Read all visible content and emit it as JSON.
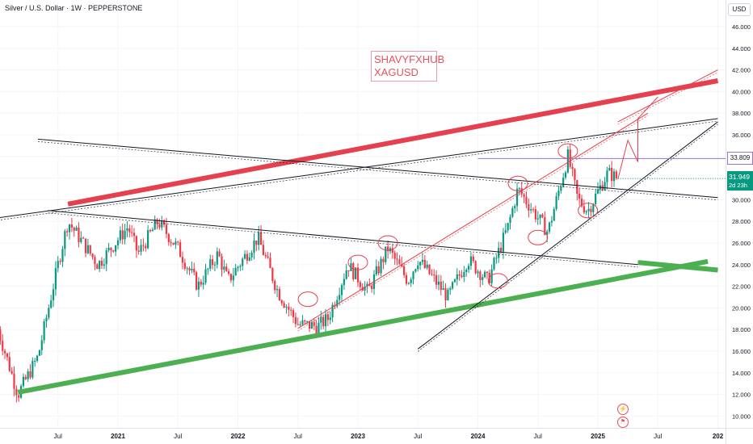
{
  "header": {
    "symbol_title": "Silver / U.S. Dollar · 1W · PEPPERSTONE",
    "currency": "USD"
  },
  "watermark": {
    "line1": "SHAVYFXHUB",
    "line2": "XAGUSD"
  },
  "price_labels": {
    "level_line_value": "33.809",
    "current_price": "31.949",
    "countdown": "2d 23h"
  },
  "colors": {
    "up_candle": "#089981",
    "down_candle": "#f23645",
    "red_trendline": "#e5404d",
    "green_trendline": "#4caf50",
    "black_trendline": "#131722",
    "level_line": "#9575cd",
    "current_price_badge": "#089981"
  },
  "icons": [
    "lightning-icon",
    "flag-icon"
  ],
  "chart_data": {
    "type": "candlestick",
    "title": "Silver / U.S. Dollar · 1W · PEPPERSTONE",
    "ylabel": "USD",
    "ylim": [
      9.3,
      47.2
    ],
    "y_ticks": [
      "46.000",
      "44.000",
      "42.000",
      "40.000",
      "38.000",
      "36.000",
      "34.000",
      "32.000",
      "30.000",
      "28.000",
      "26.000",
      "24.000",
      "22.000",
      "20.000",
      "18.000",
      "16.000",
      "14.000",
      "12.000",
      "10.000"
    ],
    "x_ticks": [
      {
        "label": "Jul",
        "bold": false
      },
      {
        "label": "2021",
        "bold": true
      },
      {
        "label": "Jul",
        "bold": false
      },
      {
        "label": "2022",
        "bold": true
      },
      {
        "label": "Jul",
        "bold": false
      },
      {
        "label": "2023",
        "bold": true
      },
      {
        "label": "Jul",
        "bold": false
      },
      {
        "label": "2024",
        "bold": true
      },
      {
        "label": "Jul",
        "bold": false
      },
      {
        "label": "2025",
        "bold": true
      },
      {
        "label": "Jul",
        "bold": false
      },
      {
        "label": "202",
        "bold": true
      }
    ],
    "price_path": [
      [
        "2020-01",
        18.0
      ],
      [
        "2020-03",
        12.0
      ],
      [
        "2020-05",
        15.5
      ],
      [
        "2020-07",
        24.0
      ],
      [
        "2020-08",
        28.0
      ],
      [
        "2020-11",
        24.0
      ],
      [
        "2021-02",
        27.5
      ],
      [
        "2021-03",
        25.0
      ],
      [
        "2021-05",
        28.0
      ],
      [
        "2021-07",
        25.5
      ],
      [
        "2021-09",
        22.0
      ],
      [
        "2021-11",
        25.0
      ],
      [
        "2021-12",
        22.5
      ],
      [
        "2022-03",
        26.5
      ],
      [
        "2022-05",
        21.5
      ],
      [
        "2022-07",
        18.5
      ],
      [
        "2022-09",
        18.3
      ],
      [
        "2022-10",
        19.0
      ],
      [
        "2022-12",
        24.0
      ],
      [
        "2023-02",
        21.5
      ],
      [
        "2023-04",
        25.5
      ],
      [
        "2023-06",
        22.5
      ],
      [
        "2023-07",
        24.5
      ],
      [
        "2023-10",
        21.0
      ],
      [
        "2023-12",
        24.5
      ],
      [
        "2024-02",
        22.5
      ],
      [
        "2024-04",
        27.5
      ],
      [
        "2024-05",
        31.0
      ],
      [
        "2024-08",
        27.0
      ],
      [
        "2024-10",
        34.0
      ],
      [
        "2024-11",
        30.0
      ],
      [
        "2024-12",
        29.0
      ],
      [
        "2025-02",
        32.5
      ],
      [
        "2025-03",
        31.95
      ]
    ],
    "trendlines": [
      {
        "name": "red-upper-channel",
        "style": "thick",
        "from": [
          "2020-08",
          29.6
        ],
        "to": [
          "2026-01",
          41.0
        ]
      },
      {
        "name": "green-lower-support",
        "style": "thick",
        "from": [
          "2020-03",
          12.2
        ],
        "to": [
          "2025-12",
          24.3
        ]
      },
      {
        "name": "green-right-segment",
        "style": "thick",
        "from": [
          "2025-05",
          24.2
        ],
        "to": [
          "2026-01",
          23.5
        ]
      },
      {
        "name": "black-long-upper",
        "style": "thin",
        "from": [
          "2019-12",
          28.2
        ],
        "to": [
          "2026-01",
          37.5
        ]
      },
      {
        "name": "black-descending",
        "style": "thin",
        "from": [
          "2020-05",
          35.6
        ],
        "to": [
          "2026-01",
          30.2
        ]
      },
      {
        "name": "black-lower-falling",
        "style": "thin",
        "from": [
          "2020-06",
          29.0
        ],
        "to": [
          "2025-05",
          24.0
        ]
      },
      {
        "name": "black-steep-support",
        "style": "thin",
        "from": [
          "2023-07",
          16.2
        ],
        "to": [
          "2026-01",
          37.2
        ]
      },
      {
        "name": "red-thin-channel",
        "style": "thin",
        "from": [
          "2022-07",
          18.1
        ],
        "to": [
          "2025-06",
          38.0
        ]
      },
      {
        "name": "red-thin-upper",
        "style": "thin",
        "from": [
          "2025-03",
          37.2
        ],
        "to": [
          "2026-01",
          42.0
        ]
      }
    ],
    "horizontal_level": {
      "value": 33.809,
      "from": "2024-01"
    },
    "projection_path": [
      [
        "2025-03",
        31.9
      ],
      [
        "2025-04",
        35.5
      ],
      [
        "2025-05",
        33.5
      ],
      [
        "2025-05",
        37.5
      ],
      [
        "2025-07",
        39.5
      ]
    ],
    "highlighted_points": [
      [
        "2022-08",
        20.8
      ],
      [
        "2023-01",
        24.2
      ],
      [
        "2023-04",
        26.0
      ],
      [
        "2024-03",
        22.5
      ],
      [
        "2024-05",
        31.5
      ],
      [
        "2024-07",
        26.5
      ],
      [
        "2024-10",
        34.5
      ],
      [
        "2024-12",
        29.0
      ]
    ]
  }
}
